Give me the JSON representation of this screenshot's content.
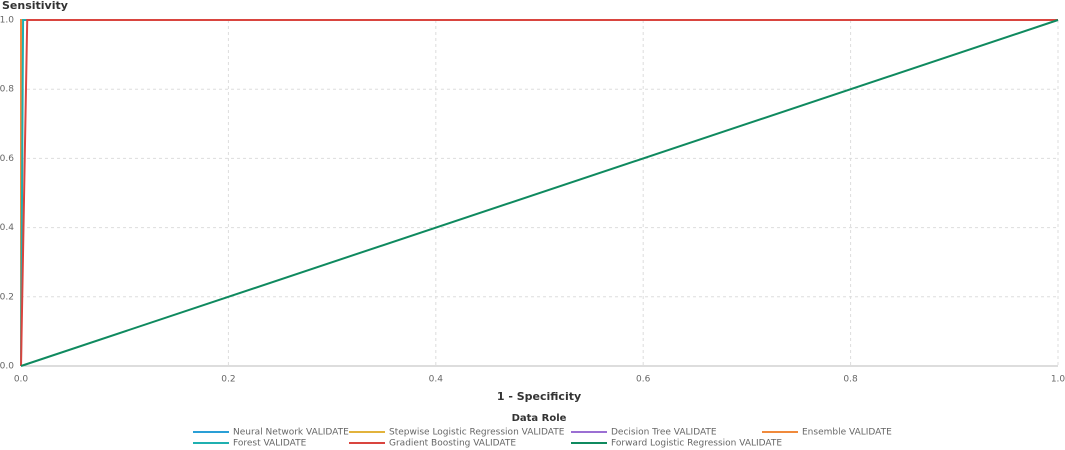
{
  "chart_data": {
    "type": "line",
    "y_label": "Sensitivity",
    "x_label": "1 - Specificity",
    "legend_title": "Data Role",
    "xlim": [
      0,
      1
    ],
    "ylim": [
      0,
      1
    ],
    "xticks": [
      {
        "value": 0,
        "label": "0.0"
      },
      0.2,
      0.4,
      0.6,
      0.8,
      {
        "value": 1,
        "label": "1.0"
      }
    ],
    "yticks": [
      {
        "value": 0,
        "label": "0.0"
      },
      0.2,
      0.4,
      0.6,
      0.8,
      {
        "value": 1,
        "label": "1.0"
      }
    ],
    "grid": true,
    "series": [
      {
        "name": "Neural Network VALIDATE",
        "color": "#2a9fd6",
        "x": [
          0,
          0,
          1
        ],
        "values": [
          0,
          1,
          1
        ]
      },
      {
        "name": "Stepwise Logistic Regression VALIDATE",
        "color": "#e2b33c",
        "x": [
          0,
          0,
          1
        ],
        "values": [
          0,
          1,
          1
        ]
      },
      {
        "name": "Decision Tree VALIDATE",
        "color": "#9b6fd3",
        "x": [
          0,
          0,
          1
        ],
        "values": [
          0,
          1,
          1
        ]
      },
      {
        "name": "Ensemble VALIDATE",
        "color": "#f08a3c",
        "x": [
          0,
          0,
          1
        ],
        "values": [
          0,
          1,
          1
        ]
      },
      {
        "name": "Forest VALIDATE",
        "color": "#1fb0b0",
        "x": [
          0,
          0.002,
          1
        ],
        "values": [
          0,
          1,
          1
        ]
      },
      {
        "name": "Gradient Boosting VALIDATE",
        "color": "#d9453f",
        "x": [
          0,
          0.006,
          1
        ],
        "values": [
          0,
          1,
          1
        ]
      },
      {
        "name": "Forward Logistic Regression VALIDATE",
        "color": "#0f8a5f",
        "x": [
          0,
          1
        ],
        "values": [
          0,
          1
        ]
      }
    ]
  }
}
